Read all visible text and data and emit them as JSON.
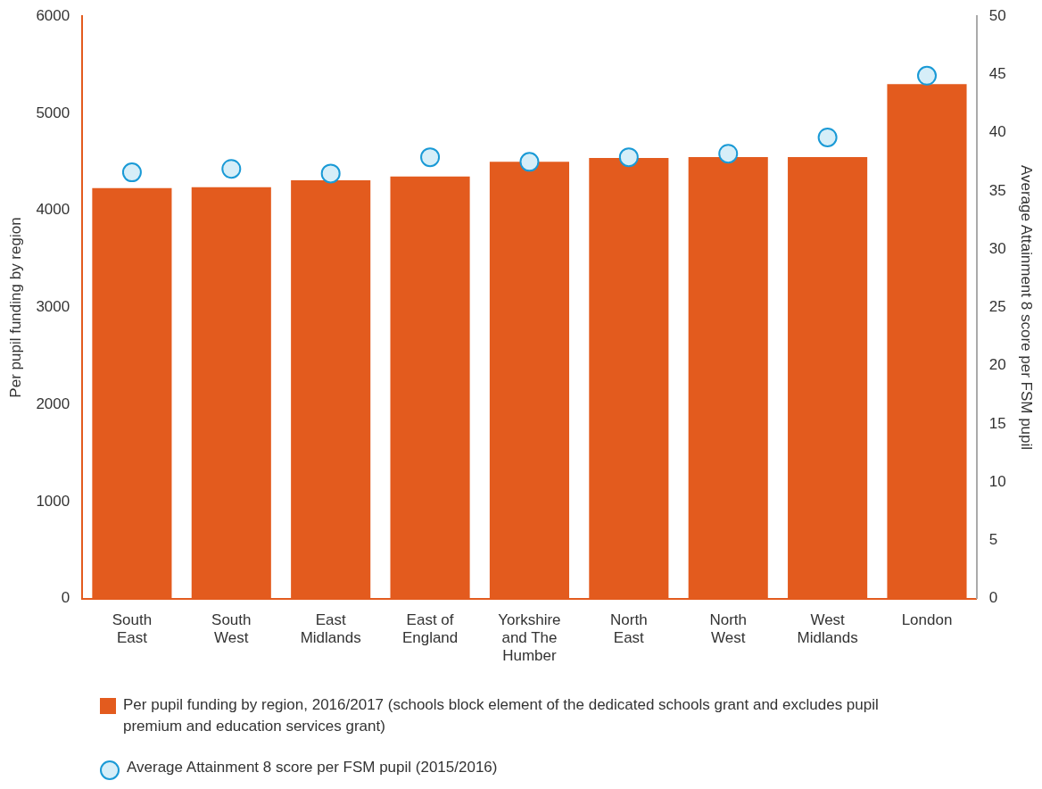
{
  "chart_data": {
    "type": "bar",
    "categories": [
      "South East",
      "South West",
      "East Midlands",
      "East of England",
      "Yorkshire and The Humber",
      "North East",
      "North West",
      "West Midlands",
      "London"
    ],
    "series": [
      {
        "name": "Per pupil funding by region, 2016/2017 (schools block element of the dedicated schools grant and excludes pupil premium and education services grant)",
        "color": "#e35b1e",
        "values": [
          4230,
          4240,
          4310,
          4350,
          4500,
          4540,
          4550,
          4550,
          5300
        ]
      },
      {
        "name": "Average Attainment 8 score per FSM pupil (2015/2016)",
        "type": "scatter",
        "axis": "y2",
        "color": "#1a9ad6",
        "values": [
          36.6,
          36.9,
          36.5,
          37.9,
          37.5,
          37.9,
          38.2,
          39.6,
          44.9
        ]
      }
    ],
    "ylabel": "Per pupil funding by region",
    "y2label": "Average Attainment 8 score per FSM pupil",
    "ylim": [
      0,
      6000
    ],
    "yticks": [
      0,
      1000,
      2000,
      3000,
      4000,
      5000,
      6000
    ],
    "y2lim": [
      0,
      50
    ],
    "y2ticks": [
      0,
      5,
      10,
      15,
      20,
      25,
      30,
      35,
      40,
      45,
      50
    ],
    "marker": "circle",
    "grid": false,
    "legend": "bottom"
  }
}
